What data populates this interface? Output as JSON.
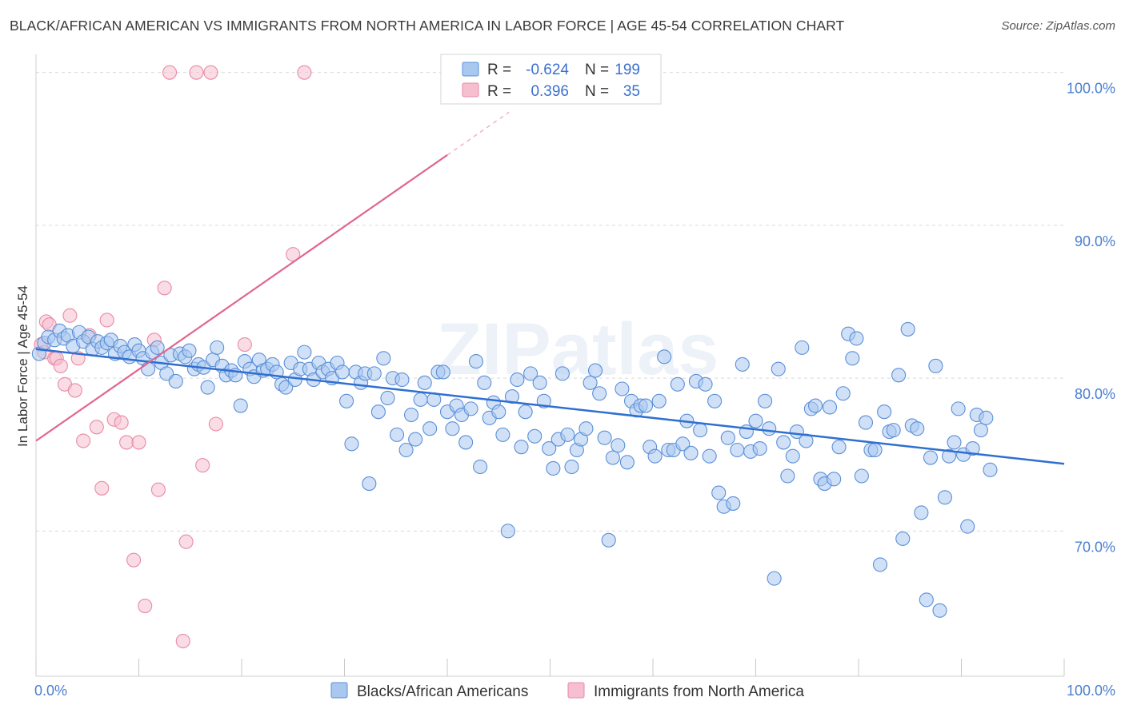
{
  "title": "BLACK/AFRICAN AMERICAN VS IMMIGRANTS FROM NORTH AMERICA IN LABOR FORCE | AGE 45-54 CORRELATION CHART",
  "source": "Source: ZipAtlas.com",
  "watermark": "ZIPatlas",
  "colors": {
    "blue_fill": "#a9c8f0",
    "blue_stroke": "#5b8fd8",
    "blue_line": "#2f6fd0",
    "pink_fill": "#f6bfd0",
    "pink_stroke": "#e88aa8",
    "pink_line": "#e0668f",
    "tick_text": "#4a7fd0",
    "grid": "#d9d9d9"
  },
  "legend": {
    "rows": [
      {
        "r_label": "R =",
        "r_value": "-0.624",
        "n_label": "N =",
        "n_value": "199"
      },
      {
        "r_label": "R =",
        "r_value": "0.396",
        "n_label": "N =",
        "n_value": "35"
      }
    ]
  },
  "chart_data": {
    "type": "scatter",
    "ylabel": "In Labor Force | Age 45-54",
    "xlim": [
      0,
      100
    ],
    "ylim": [
      60.5,
      101.5
    ],
    "y_ticks": [
      {
        "value": 100,
        "label": "100.0%"
      },
      {
        "value": 90,
        "label": "90.0%"
      },
      {
        "value": 80,
        "label": "80.0%"
      },
      {
        "value": 70,
        "label": "70.0%"
      }
    ],
    "x_tick_labels": {
      "left": "0.0%",
      "right": "100.0%"
    },
    "grid": true,
    "legend_position": "top-center",
    "series": [
      {
        "name": "Blacks/African Americans",
        "color": "#5b8fd8",
        "trend": {
          "x0": 0,
          "y0": 81.9,
          "x1": 100,
          "y1": 74.4
        },
        "points": [
          [
            0.3,
            81.6
          ],
          [
            0.8,
            82.3
          ],
          [
            1.2,
            82.7
          ],
          [
            1.8,
            82.5
          ],
          [
            2.3,
            83.1
          ],
          [
            2.7,
            82.6
          ],
          [
            3.1,
            82.8
          ],
          [
            3.6,
            82.1
          ],
          [
            4.2,
            83.0
          ],
          [
            4.6,
            82.4
          ],
          [
            5.1,
            82.7
          ],
          [
            5.5,
            81.9
          ],
          [
            6.0,
            82.4
          ],
          [
            6.4,
            82.0
          ],
          [
            6.9,
            82.3
          ],
          [
            7.3,
            82.5
          ],
          [
            7.7,
            81.6
          ],
          [
            8.2,
            82.1
          ],
          [
            8.6,
            81.7
          ],
          [
            9.1,
            81.4
          ],
          [
            9.6,
            82.2
          ],
          [
            10.0,
            81.8
          ],
          [
            10.4,
            81.3
          ],
          [
            10.9,
            80.6
          ],
          [
            11.3,
            81.7
          ],
          [
            11.8,
            82.0
          ],
          [
            12.2,
            81.0
          ],
          [
            12.7,
            80.3
          ],
          [
            13.1,
            81.5
          ],
          [
            13.6,
            79.8
          ],
          [
            14.0,
            81.6
          ],
          [
            14.5,
            81.4
          ],
          [
            14.9,
            81.8
          ],
          [
            15.4,
            80.6
          ],
          [
            15.8,
            80.9
          ],
          [
            16.3,
            80.7
          ],
          [
            16.7,
            79.4
          ],
          [
            17.2,
            81.2
          ],
          [
            17.6,
            82.0
          ],
          [
            18.1,
            80.8
          ],
          [
            18.5,
            80.2
          ],
          [
            19.0,
            80.5
          ],
          [
            19.4,
            80.2
          ],
          [
            19.9,
            78.2
          ],
          [
            20.3,
            81.1
          ],
          [
            20.8,
            80.6
          ],
          [
            21.2,
            80.1
          ],
          [
            21.7,
            81.2
          ],
          [
            22.1,
            80.5
          ],
          [
            22.5,
            80.6
          ],
          [
            23.0,
            80.9
          ],
          [
            23.4,
            80.4
          ],
          [
            23.9,
            79.6
          ],
          [
            24.3,
            79.4
          ],
          [
            24.8,
            81.0
          ],
          [
            25.2,
            79.9
          ],
          [
            25.7,
            80.6
          ],
          [
            26.1,
            81.7
          ],
          [
            26.6,
            80.6
          ],
          [
            27.0,
            79.9
          ],
          [
            27.5,
            81.0
          ],
          [
            27.9,
            80.4
          ],
          [
            28.4,
            80.6
          ],
          [
            28.8,
            80.0
          ],
          [
            29.3,
            81.0
          ],
          [
            29.8,
            80.4
          ],
          [
            30.2,
            78.5
          ],
          [
            30.7,
            75.7
          ],
          [
            31.1,
            80.4
          ],
          [
            31.6,
            79.7
          ],
          [
            32.0,
            80.3
          ],
          [
            32.4,
            73.1
          ],
          [
            32.9,
            80.3
          ],
          [
            33.3,
            77.8
          ],
          [
            33.8,
            81.3
          ],
          [
            34.2,
            78.7
          ],
          [
            34.7,
            80.0
          ],
          [
            35.1,
            76.3
          ],
          [
            35.6,
            79.9
          ],
          [
            36.0,
            75.3
          ],
          [
            36.5,
            77.6
          ],
          [
            36.9,
            76.0
          ],
          [
            37.4,
            78.6
          ],
          [
            37.8,
            79.7
          ],
          [
            38.3,
            76.7
          ],
          [
            38.7,
            78.6
          ],
          [
            39.1,
            80.4
          ],
          [
            39.6,
            80.4
          ],
          [
            40.0,
            77.8
          ],
          [
            40.5,
            76.7
          ],
          [
            40.9,
            78.2
          ],
          [
            41.4,
            77.6
          ],
          [
            41.8,
            75.8
          ],
          [
            42.3,
            78.0
          ],
          [
            42.8,
            81.1
          ],
          [
            43.2,
            74.2
          ],
          [
            43.6,
            79.7
          ],
          [
            44.1,
            77.4
          ],
          [
            44.5,
            78.4
          ],
          [
            45.0,
            77.8
          ],
          [
            45.4,
            76.3
          ],
          [
            45.9,
            70.0
          ],
          [
            46.3,
            78.8
          ],
          [
            46.8,
            79.9
          ],
          [
            47.2,
            75.5
          ],
          [
            47.6,
            77.8
          ],
          [
            48.1,
            80.3
          ],
          [
            48.5,
            76.2
          ],
          [
            49.0,
            79.7
          ],
          [
            49.4,
            78.5
          ],
          [
            49.9,
            75.4
          ],
          [
            50.3,
            74.1
          ],
          [
            50.8,
            76.0
          ],
          [
            51.2,
            80.3
          ],
          [
            51.7,
            76.3
          ],
          [
            52.1,
            74.2
          ],
          [
            52.6,
            75.3
          ],
          [
            53.0,
            76.0
          ],
          [
            53.5,
            76.7
          ],
          [
            53.9,
            79.7
          ],
          [
            54.4,
            80.5
          ],
          [
            54.8,
            79.0
          ],
          [
            55.3,
            76.1
          ],
          [
            55.7,
            69.4
          ],
          [
            56.1,
            74.8
          ],
          [
            56.6,
            75.6
          ],
          [
            57.0,
            79.3
          ],
          [
            57.5,
            74.5
          ],
          [
            57.9,
            78.5
          ],
          [
            58.4,
            77.9
          ],
          [
            58.8,
            78.2
          ],
          [
            59.3,
            78.2
          ],
          [
            59.7,
            75.5
          ],
          [
            60.2,
            74.9
          ],
          [
            60.6,
            78.5
          ],
          [
            61.1,
            81.4
          ],
          [
            61.5,
            75.3
          ],
          [
            62.0,
            75.3
          ],
          [
            62.4,
            79.6
          ],
          [
            62.9,
            75.7
          ],
          [
            63.3,
            77.2
          ],
          [
            63.7,
            75.1
          ],
          [
            64.2,
            79.8
          ],
          [
            64.6,
            76.6
          ],
          [
            65.1,
            79.6
          ],
          [
            65.5,
            74.9
          ],
          [
            66.0,
            78.5
          ],
          [
            66.4,
            72.5
          ],
          [
            66.9,
            71.6
          ],
          [
            67.3,
            76.1
          ],
          [
            67.8,
            71.8
          ],
          [
            68.2,
            75.3
          ],
          [
            68.7,
            80.9
          ],
          [
            69.1,
            76.5
          ],
          [
            69.5,
            75.2
          ],
          [
            70.0,
            77.2
          ],
          [
            70.4,
            75.4
          ],
          [
            70.9,
            78.5
          ],
          [
            71.3,
            76.7
          ],
          [
            71.8,
            66.9
          ],
          [
            72.2,
            80.6
          ],
          [
            72.7,
            75.8
          ],
          [
            73.1,
            73.6
          ],
          [
            73.6,
            74.9
          ],
          [
            74.0,
            76.5
          ],
          [
            74.5,
            82.0
          ],
          [
            74.9,
            75.9
          ],
          [
            75.4,
            78.0
          ],
          [
            75.8,
            78.2
          ],
          [
            76.3,
            73.4
          ],
          [
            76.7,
            73.1
          ],
          [
            77.2,
            78.1
          ],
          [
            77.6,
            73.4
          ],
          [
            78.1,
            75.5
          ],
          [
            78.5,
            79.0
          ],
          [
            79.0,
            82.9
          ],
          [
            79.4,
            81.3
          ],
          [
            79.8,
            82.6
          ],
          [
            80.3,
            73.6
          ],
          [
            80.7,
            77.1
          ],
          [
            81.2,
            75.3
          ],
          [
            81.6,
            75.3
          ],
          [
            82.1,
            67.8
          ],
          [
            82.5,
            77.8
          ],
          [
            83.0,
            76.5
          ],
          [
            83.4,
            76.6
          ],
          [
            83.9,
            80.2
          ],
          [
            84.3,
            69.5
          ],
          [
            84.8,
            83.2
          ],
          [
            85.2,
            76.9
          ],
          [
            85.7,
            76.7
          ],
          [
            86.1,
            71.2
          ],
          [
            86.6,
            65.5
          ],
          [
            87.0,
            74.8
          ],
          [
            87.5,
            80.8
          ],
          [
            87.9,
            64.8
          ],
          [
            88.4,
            72.2
          ],
          [
            88.8,
            74.9
          ],
          [
            89.3,
            75.8
          ],
          [
            89.7,
            78.0
          ],
          [
            90.2,
            75.0
          ],
          [
            90.6,
            70.3
          ],
          [
            91.1,
            75.4
          ],
          [
            91.5,
            77.6
          ],
          [
            91.9,
            76.6
          ],
          [
            92.4,
            77.4
          ],
          [
            92.8,
            74.0
          ]
        ]
      },
      {
        "name": "Immigrants from North America",
        "color": "#e88aa8",
        "trend": {
          "x0": 0,
          "y0": 75.9,
          "x1": 40,
          "y1": 94.6,
          "x2": 46,
          "y2": 97.4
        },
        "points": [
          [
            0.5,
            82.2
          ],
          [
            0.8,
            81.7
          ],
          [
            1.0,
            83.7
          ],
          [
            1.3,
            83.5
          ],
          [
            1.8,
            81.3
          ],
          [
            2.0,
            81.3
          ],
          [
            2.4,
            80.8
          ],
          [
            2.8,
            79.6
          ],
          [
            3.3,
            84.1
          ],
          [
            3.8,
            79.2
          ],
          [
            4.1,
            81.3
          ],
          [
            4.6,
            75.9
          ],
          [
            5.2,
            82.8
          ],
          [
            5.9,
            76.8
          ],
          [
            6.4,
            72.8
          ],
          [
            6.9,
            83.8
          ],
          [
            7.6,
            77.3
          ],
          [
            8.3,
            77.1
          ],
          [
            8.8,
            75.8
          ],
          [
            9.5,
            68.1
          ],
          [
            10.0,
            75.8
          ],
          [
            10.6,
            65.1
          ],
          [
            11.5,
            82.5
          ],
          [
            11.9,
            72.7
          ],
          [
            12.5,
            85.9
          ],
          [
            13.0,
            100.0
          ],
          [
            14.3,
            62.8
          ],
          [
            14.6,
            69.3
          ],
          [
            15.6,
            100.0
          ],
          [
            16.2,
            74.3
          ],
          [
            17.0,
            100.0
          ],
          [
            17.5,
            77.0
          ],
          [
            20.3,
            82.2
          ],
          [
            25.0,
            88.1
          ],
          [
            26.1,
            100.0
          ]
        ]
      }
    ]
  }
}
